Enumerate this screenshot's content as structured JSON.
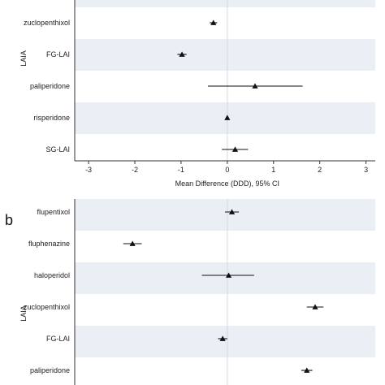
{
  "chart_data": [
    {
      "type": "forest",
      "panel_label": "",
      "group_label": "LAIA",
      "xlabel": "Mean Difference (DDD), 95% CI",
      "xlim": [
        -3.3,
        3.2
      ],
      "xticks": [
        "-3",
        "-2",
        "-1",
        "0",
        "1",
        "2",
        "3"
      ],
      "rows": [
        {
          "label": "zuclopenthixol",
          "estimate": -0.3,
          "lower": -0.38,
          "upper": -0.22
        },
        {
          "label": "FG-LAI",
          "estimate": -0.98,
          "lower": -1.08,
          "upper": -0.88
        },
        {
          "label": "paliperidone",
          "estimate": 0.6,
          "lower": -0.42,
          "upper": 1.63
        },
        {
          "label": "risperidone",
          "estimate": 0.0,
          "lower": -0.03,
          "upper": 0.03
        },
        {
          "label": "SG-LAI",
          "estimate": 0.17,
          "lower": -0.12,
          "upper": 0.45
        }
      ],
      "row_shading": [
        "#ffffff",
        "#eaeef5"
      ],
      "marker": "triangle"
    },
    {
      "type": "forest",
      "panel_label": "b",
      "group_label": "LAIA",
      "xlim": [
        -3.3,
        3.2
      ],
      "rows": [
        {
          "label": "flupentixol",
          "estimate": 0.1,
          "lower": -0.05,
          "upper": 0.25
        },
        {
          "label": "fluphenazine",
          "estimate": -2.05,
          "lower": -2.25,
          "upper": -1.85
        },
        {
          "label": "haloperidol",
          "estimate": 0.03,
          "lower": -0.55,
          "upper": 0.58
        },
        {
          "label": "zuclopenthixol",
          "estimate": 1.9,
          "lower": 1.72,
          "upper": 2.08
        },
        {
          "label": "FG-LAI",
          "estimate": -0.1,
          "lower": -0.2,
          "upper": 0.0
        },
        {
          "label": "paliperidone",
          "estimate": 1.72,
          "lower": 1.6,
          "upper": 1.84
        }
      ],
      "row_shading": [
        "#eaeef5",
        "#ffffff"
      ],
      "marker": "triangle"
    }
  ]
}
